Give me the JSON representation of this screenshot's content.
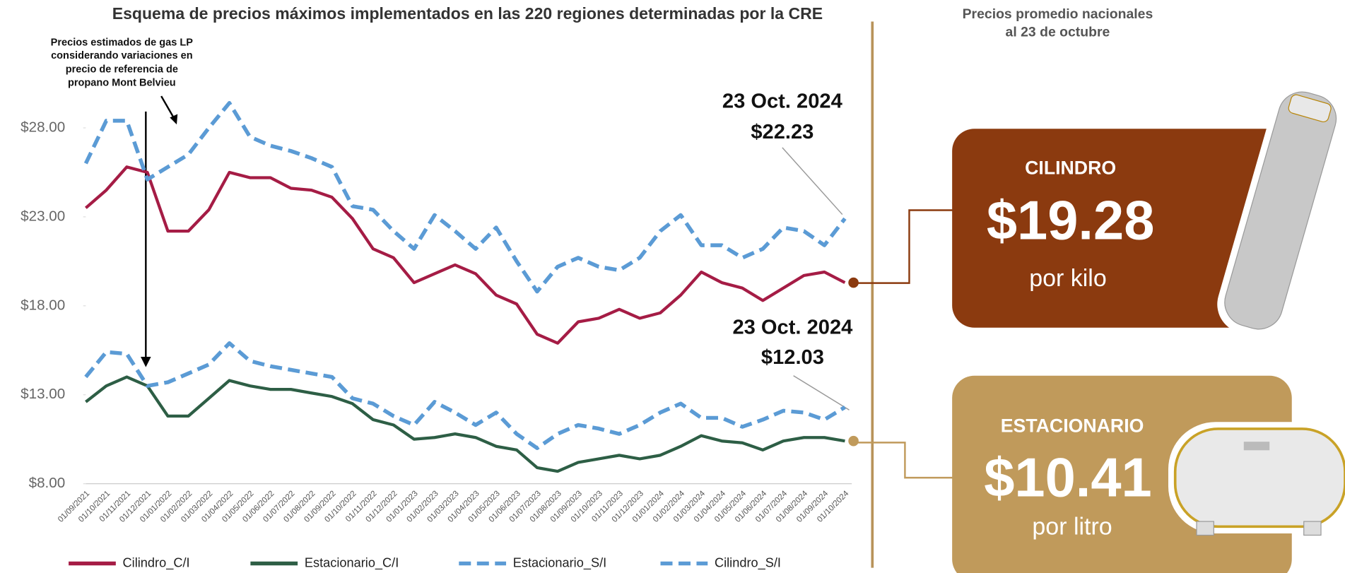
{
  "chart_data": {
    "type": "line",
    "title": "Esquema de precios máximos implementados en las 220 regiones determinadas por la CRE",
    "categories": [
      "01/09/2021",
      "01/10/2021",
      "01/11/2021",
      "01/12/2021",
      "01/01/2022",
      "01/02/2022",
      "01/03/2022",
      "01/04/2022",
      "01/05/2022",
      "01/06/2022",
      "01/07/2022",
      "01/08/2022",
      "01/09/2022",
      "01/10/2022",
      "01/11/2022",
      "01/12/2022",
      "01/01/2023",
      "01/02/2023",
      "01/03/2023",
      "01/04/2023",
      "01/05/2023",
      "01/06/2023",
      "01/07/2023",
      "01/08/2023",
      "01/09/2023",
      "01/10/2023",
      "01/11/2023",
      "01/12/2023",
      "01/01/2024",
      "01/02/2024",
      "01/03/2024",
      "01/04/2024",
      "01/05/2024",
      "01/06/2024",
      "01/07/2024",
      "01/08/2024",
      "01/09/2024",
      "01/10/2024"
    ],
    "series": [
      {
        "name": "Cilindro_C/I",
        "color": "#a51c45",
        "style": "solid",
        "values": [
          23.5,
          24.5,
          25.8,
          25.5,
          22.2,
          22.2,
          23.4,
          25.5,
          25.2,
          25.2,
          24.6,
          24.5,
          24.1,
          22.9,
          21.2,
          20.7,
          19.3,
          19.8,
          20.3,
          19.8,
          18.6,
          18.1,
          16.4,
          15.9,
          17.1,
          17.3,
          17.8,
          17.3,
          17.6,
          18.6,
          19.9,
          19.3,
          19.0,
          18.3,
          19.0,
          19.7,
          19.9,
          19.3
        ]
      },
      {
        "name": "Estacionario_C/I",
        "color": "#2d5e45",
        "style": "solid",
        "values": [
          12.6,
          13.5,
          14.0,
          13.5,
          11.8,
          11.8,
          12.8,
          13.8,
          13.5,
          13.3,
          13.3,
          13.1,
          12.9,
          12.5,
          11.6,
          11.3,
          10.5,
          10.6,
          10.8,
          10.6,
          10.1,
          9.9,
          8.9,
          8.7,
          9.2,
          9.4,
          9.6,
          9.4,
          9.6,
          10.1,
          10.7,
          10.4,
          10.3,
          9.9,
          10.4,
          10.6,
          10.6,
          10.4
        ]
      },
      {
        "name": "Estacionario_S/I",
        "color": "#5b9bd5",
        "style": "dashed",
        "values": [
          14.0,
          15.4,
          15.3,
          13.5,
          13.7,
          14.2,
          14.7,
          15.9,
          14.9,
          14.6,
          14.4,
          14.2,
          14.0,
          12.8,
          12.5,
          11.8,
          11.3,
          12.6,
          12.0,
          11.3,
          12.0,
          10.8,
          10.0,
          10.8,
          11.3,
          11.1,
          10.8,
          11.3,
          12.0,
          12.5,
          11.7,
          11.7,
          11.2,
          11.6,
          12.1,
          12.0,
          11.6,
          12.3
        ]
      },
      {
        "name": "Cilindro_S/I",
        "color": "#5b9bd5",
        "style": "dashed",
        "values": [
          26.0,
          28.4,
          28.4,
          25.1,
          25.8,
          26.5,
          28.0,
          29.4,
          27.5,
          27.0,
          26.7,
          26.3,
          25.8,
          23.6,
          23.4,
          22.2,
          21.2,
          23.1,
          22.2,
          21.2,
          22.4,
          20.5,
          18.8,
          20.2,
          20.7,
          20.2,
          20.0,
          20.7,
          22.2,
          23.1,
          21.4,
          21.4,
          20.7,
          21.2,
          22.4,
          22.2,
          21.4,
          22.9
        ]
      }
    ],
    "ylim": [
      8,
      31
    ],
    "yticks": [
      {
        "value": 8,
        "label": "$8.00"
      },
      {
        "value": 13,
        "label": "$13.00"
      },
      {
        "value": 18,
        "label": "$18.00"
      },
      {
        "value": 23,
        "label": "$23.00"
      },
      {
        "value": 28,
        "label": "$28.00"
      }
    ],
    "annotations": [
      {
        "lines": [
          "23 Oct. 2024",
          "$22.23"
        ]
      },
      {
        "lines": [
          "23 Oct. 2024",
          "$12.03"
        ]
      },
      {
        "lines": [
          "Precios estimados de gas LP",
          "considerando variaciones en",
          "precio de referencia de",
          "propano Mont Belvieu"
        ]
      }
    ]
  },
  "panel": {
    "title": [
      "Precios promedio nacionales",
      "al 23 de octubre"
    ],
    "cards": [
      {
        "label": "CILINDRO",
        "price": "$19.28",
        "unit": "por kilo"
      },
      {
        "label": "ESTACIONARIO",
        "price": "$10.41",
        "unit": "por litro"
      }
    ]
  }
}
